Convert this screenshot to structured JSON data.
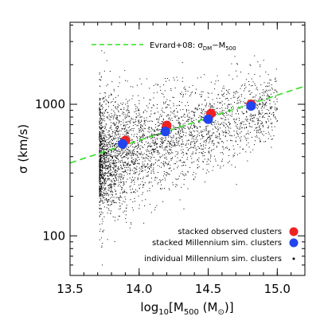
{
  "chart_data": {
    "type": "scatter",
    "xlabel": "log10[M500 (M⊙)]",
    "ylabel": "σ (km/s)",
    "xlim": [
      13.5,
      15.2
    ],
    "ylim": [
      50,
      4200
    ],
    "y_scale": "log",
    "x_ticks": [
      13.5,
      14.0,
      14.5,
      15.0
    ],
    "x_tick_labels": [
      "13.5",
      "14.0",
      "14.5",
      "15.0"
    ],
    "y_ticks": [
      100,
      1000
    ],
    "y_tick_labels": [
      "100",
      "1000"
    ],
    "grid": false,
    "legend_top": {
      "position": "top-left",
      "entries": [
        {
          "label": "Evrard+08: σDM−M500",
          "style": "dashed-line",
          "color": "#33dd22"
        }
      ]
    },
    "legend_bottom": {
      "position": "bottom-right",
      "entries": [
        {
          "label": "stacked observed clusters",
          "style": "filled-circle",
          "color": "#ee2222"
        },
        {
          "label": "stacked Millennium sim. clusters",
          "style": "filled-circle",
          "color": "#2244ee"
        },
        {
          "label": "individual Millennium sim. clusters",
          "style": "dot",
          "color": "#000000"
        }
      ]
    },
    "series": [
      {
        "name": "Evrard+08: σDM−M500",
        "type": "line",
        "color": "#33dd22",
        "x": [
          13.5,
          15.2
        ],
        "y": [
          358,
          1375
        ]
      },
      {
        "name": "stacked observed clusters",
        "type": "scatter",
        "color": "#ee2222",
        "x": [
          13.9,
          14.2,
          14.52,
          14.81
        ],
        "y": [
          530,
          690,
          850,
          1000
        ]
      },
      {
        "name": "stacked Millennium sim. clusters",
        "type": "scatter",
        "color": "#2244ee",
        "x": [
          13.88,
          14.19,
          14.5,
          14.81
        ],
        "y": [
          500,
          620,
          770,
          970
        ]
      },
      {
        "name": "individual Millennium sim. clusters",
        "type": "scatter",
        "color": "#000000",
        "point_count": 3500,
        "x_range": [
          13.71,
          15.0
        ],
        "y_center_at_x_min": 380,
        "y_center_slope_per_dex": 0.32,
        "y_scatter_dex_at_x_min": 0.23
      }
    ]
  }
}
